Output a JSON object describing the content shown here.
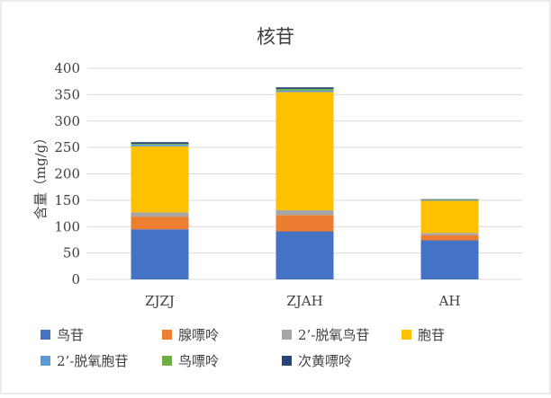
{
  "chart_data": {
    "type": "bar",
    "stacked": true,
    "title": "核苷",
    "ylabel": "含量（mg/g）",
    "xlabel": "",
    "categories": [
      "ZJZJ",
      "ZJAH",
      "AH"
    ],
    "ylim": [
      0,
      400
    ],
    "yticks": [
      0,
      50,
      100,
      150,
      200,
      250,
      300,
      350,
      400
    ],
    "grid": true,
    "legend_position": "bottom",
    "series": [
      {
        "name": "鸟苷",
        "color": "#4472C4",
        "values": [
          95,
          91,
          74
        ]
      },
      {
        "name": "腺嘌呤",
        "color": "#ED7D31",
        "values": [
          24,
          31,
          10
        ]
      },
      {
        "name": "2’-脱氧鸟苷",
        "color": "#A5A5A5",
        "values": [
          8,
          9,
          4
        ]
      },
      {
        "name": "胞苷",
        "color": "#FFC000",
        "values": [
          125,
          224,
          61
        ]
      },
      {
        "name": "2’-脱氧胞苷",
        "color": "#5B9BD5",
        "values": [
          3,
          3,
          1
        ]
      },
      {
        "name": "鸟嘌呤",
        "color": "#70AD47",
        "values": [
          2,
          3,
          1
        ]
      },
      {
        "name": "次黄嘌呤",
        "color": "#264478",
        "values": [
          3,
          3,
          1
        ]
      }
    ]
  }
}
